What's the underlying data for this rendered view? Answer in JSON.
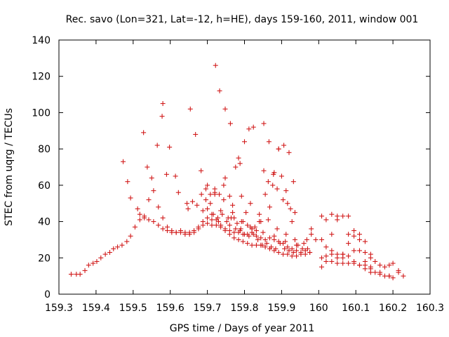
{
  "chart_data": {
    "type": "scatter",
    "title": "Rec. savo (Lon=321, Lat=-12, h=HE), days 159-160, 2011, window 001",
    "xlabel": "GPS time / Days of year 2011",
    "ylabel": "STEC from uqrg / TECUs",
    "xlim": [
      159.3,
      160.3
    ],
    "ylim": [
      0,
      140
    ],
    "xticks": [
      "159.3",
      "159.4",
      "159.5",
      "159.6",
      "159.7",
      "159.8",
      "159.9",
      "160",
      "160.1",
      "160.2",
      "160.3"
    ],
    "yticks": [
      "0",
      "20",
      "40",
      "60",
      "80",
      "100",
      "120",
      "140"
    ],
    "grid": false,
    "marker": "+",
    "series": [
      {
        "name": "STEC",
        "color": "#d11a1a",
        "points": [
          [
            159.333,
            11
          ],
          [
            159.347,
            11
          ],
          [
            159.357,
            11
          ],
          [
            159.37,
            13
          ],
          [
            159.38,
            16
          ],
          [
            159.392,
            17
          ],
          [
            159.402,
            18
          ],
          [
            159.413,
            20
          ],
          [
            159.425,
            22
          ],
          [
            159.437,
            23
          ],
          [
            159.447,
            25
          ],
          [
            159.458,
            26
          ],
          [
            159.47,
            27
          ],
          [
            159.483,
            29
          ],
          [
            159.493,
            32
          ],
          [
            159.505,
            37
          ],
          [
            159.518,
            41
          ],
          [
            159.53,
            43
          ],
          [
            159.542,
            41
          ],
          [
            159.555,
            40
          ],
          [
            159.568,
            38
          ],
          [
            159.58,
            36
          ],
          [
            159.592,
            35
          ],
          [
            159.604,
            34
          ],
          [
            159.616,
            34
          ],
          [
            159.628,
            34
          ],
          [
            159.64,
            33
          ],
          [
            159.652,
            33
          ],
          [
            159.664,
            34
          ],
          [
            159.676,
            36
          ],
          [
            159.688,
            38
          ],
          [
            159.7,
            39
          ],
          [
            159.712,
            38
          ],
          [
            159.724,
            38
          ],
          [
            159.736,
            37
          ],
          [
            159.748,
            35
          ],
          [
            159.76,
            33
          ],
          [
            159.772,
            31
          ],
          [
            159.784,
            30
          ],
          [
            159.796,
            29
          ],
          [
            159.808,
            28
          ],
          [
            159.82,
            27
          ],
          [
            159.832,
            27
          ],
          [
            159.844,
            27
          ],
          [
            159.856,
            26
          ],
          [
            159.868,
            25
          ],
          [
            159.88,
            24
          ],
          [
            159.892,
            23
          ],
          [
            159.904,
            22
          ],
          [
            159.916,
            22
          ],
          [
            159.928,
            21
          ],
          [
            159.94,
            21
          ],
          [
            159.952,
            22
          ],
          [
            159.964,
            22
          ],
          [
            159.976,
            23
          ],
          [
            160.008,
            15
          ],
          [
            160.02,
            18
          ],
          [
            160.035,
            18
          ],
          [
            160.05,
            17
          ],
          [
            160.065,
            17
          ],
          [
            160.08,
            17
          ],
          [
            160.095,
            17
          ],
          [
            160.11,
            16
          ],
          [
            160.125,
            16
          ],
          [
            160.14,
            14
          ],
          [
            160.152,
            12
          ],
          [
            160.165,
            11
          ],
          [
            160.178,
            10
          ],
          [
            160.19,
            10
          ],
          [
            160.2,
            9
          ],
          [
            160.215,
            13
          ],
          [
            160.228,
            10
          ],
          [
            159.493,
            53
          ],
          [
            159.518,
            44
          ],
          [
            159.53,
            42
          ],
          [
            159.542,
            52
          ],
          [
            159.555,
            57
          ],
          [
            159.568,
            48
          ],
          [
            159.58,
            42
          ],
          [
            159.592,
            37
          ],
          [
            159.604,
            35
          ],
          [
            159.616,
            34
          ],
          [
            159.628,
            35
          ],
          [
            159.64,
            34
          ],
          [
            159.652,
            34
          ],
          [
            159.664,
            35
          ],
          [
            159.676,
            37
          ],
          [
            159.688,
            40
          ],
          [
            159.7,
            42
          ],
          [
            159.712,
            44
          ],
          [
            159.724,
            41
          ],
          [
            159.736,
            38
          ],
          [
            159.748,
            36
          ],
          [
            159.76,
            35
          ],
          [
            159.772,
            34
          ],
          [
            159.784,
            34
          ],
          [
            159.796,
            33
          ],
          [
            159.808,
            33
          ],
          [
            159.82,
            34
          ],
          [
            159.832,
            32
          ],
          [
            159.844,
            31
          ],
          [
            159.856,
            30
          ],
          [
            159.868,
            31
          ],
          [
            159.88,
            30
          ],
          [
            159.892,
            29
          ],
          [
            159.904,
            28
          ],
          [
            159.916,
            26
          ],
          [
            159.928,
            25
          ],
          [
            159.94,
            24
          ],
          [
            159.952,
            23
          ],
          [
            159.964,
            24
          ],
          [
            159.976,
            23
          ],
          [
            159.473,
            73
          ],
          [
            159.485,
            62
          ],
          [
            159.512,
            47
          ],
          [
            159.538,
            70
          ],
          [
            159.55,
            64
          ],
          [
            159.565,
            82
          ],
          [
            159.59,
            66
          ],
          [
            159.614,
            65
          ],
          [
            159.648,
            47
          ],
          [
            159.672,
            49
          ],
          [
            159.696,
            52
          ],
          [
            159.72,
            58
          ],
          [
            159.744,
            60
          ],
          [
            159.768,
            49
          ],
          [
            159.792,
            54
          ],
          [
            159.816,
            50
          ],
          [
            159.84,
            44
          ],
          [
            159.864,
            41
          ],
          [
            159.888,
            36
          ],
          [
            159.912,
            33
          ],
          [
            159.936,
            30
          ],
          [
            159.96,
            28
          ],
          [
            159.528,
            89
          ],
          [
            159.578,
            98
          ],
          [
            159.58,
            105
          ],
          [
            159.598,
            81
          ],
          [
            159.654,
            102
          ],
          [
            159.668,
            88
          ],
          [
            159.683,
            68
          ],
          [
            159.722,
            126
          ],
          [
            159.733,
            112
          ],
          [
            159.748,
            102
          ],
          [
            159.762,
            94
          ],
          [
            159.776,
            70
          ],
          [
            159.788,
            72
          ],
          [
            159.8,
            84
          ],
          [
            159.812,
            91
          ],
          [
            159.824,
            92
          ],
          [
            159.852,
            94
          ],
          [
            159.866,
            84
          ],
          [
            159.878,
            66
          ],
          [
            159.892,
            80
          ],
          [
            159.906,
            82
          ],
          [
            159.92,
            78
          ],
          [
            159.932,
            62
          ],
          [
            159.622,
            56
          ],
          [
            159.645,
            50
          ],
          [
            159.66,
            51
          ],
          [
            159.684,
            55
          ],
          [
            159.696,
            58
          ],
          [
            159.708,
            55
          ],
          [
            159.72,
            55
          ],
          [
            159.732,
            55
          ],
          [
            159.744,
            52
          ],
          [
            159.756,
            42
          ],
          [
            159.768,
            45
          ],
          [
            159.78,
            39
          ],
          [
            159.792,
            40
          ],
          [
            159.804,
            45
          ],
          [
            159.816,
            37
          ],
          [
            159.828,
            37
          ],
          [
            159.84,
            40
          ],
          [
            159.852,
            68
          ],
          [
            159.864,
            62
          ],
          [
            159.876,
            60
          ],
          [
            159.888,
            58
          ],
          [
            159.9,
            65
          ],
          [
            159.912,
            57
          ],
          [
            159.924,
            47
          ],
          [
            159.936,
            45
          ],
          [
            159.7,
            60
          ],
          [
            159.708,
            50
          ],
          [
            159.72,
            56
          ],
          [
            159.736,
            46
          ],
          [
            159.748,
            64
          ],
          [
            159.76,
            54
          ],
          [
            159.772,
            42
          ],
          [
            159.784,
            75
          ],
          [
            159.796,
            40
          ],
          [
            159.808,
            38
          ],
          [
            159.82,
            36
          ],
          [
            159.832,
            35
          ],
          [
            159.844,
            40
          ],
          [
            159.856,
            55
          ],
          [
            159.868,
            48
          ],
          [
            159.88,
            67
          ],
          [
            159.892,
            80
          ],
          [
            159.904,
            52
          ],
          [
            159.916,
            50
          ],
          [
            159.928,
            40
          ],
          [
            159.712,
            41
          ],
          [
            159.728,
            42
          ],
          [
            159.74,
            44
          ],
          [
            159.752,
            40
          ],
          [
            159.764,
            42
          ],
          [
            159.776,
            36
          ],
          [
            159.788,
            35
          ],
          [
            159.8,
            33
          ],
          [
            159.812,
            32
          ],
          [
            159.824,
            33
          ],
          [
            159.836,
            30
          ],
          [
            159.848,
            27
          ],
          [
            159.86,
            28
          ],
          [
            159.872,
            26
          ],
          [
            159.884,
            25
          ],
          [
            159.896,
            28
          ],
          [
            159.908,
            25
          ],
          [
            159.92,
            24
          ],
          [
            159.932,
            23
          ],
          [
            159.944,
            27
          ],
          [
            159.956,
            25
          ],
          [
            159.968,
            30
          ],
          [
            159.98,
            33
          ],
          [
            159.992,
            30
          ],
          [
            159.688,
            46
          ],
          [
            159.7,
            47
          ],
          [
            159.716,
            44
          ],
          [
            159.73,
            40
          ],
          [
            159.76,
            38
          ],
          [
            159.79,
            36
          ],
          [
            159.82,
            36
          ],
          [
            159.85,
            34
          ],
          [
            159.88,
            32
          ],
          [
            159.91,
            29
          ],
          [
            159.94,
            27
          ],
          [
            159.97,
            25
          ],
          [
            159.98,
            36
          ],
          [
            160.008,
            43
          ],
          [
            160.02,
            41
          ],
          [
            160.035,
            44
          ],
          [
            160.05,
            41
          ],
          [
            160.065,
            43
          ],
          [
            160.08,
            43
          ],
          [
            160.095,
            32
          ],
          [
            160.11,
            30
          ],
          [
            160.125,
            29
          ],
          [
            160.14,
            22
          ],
          [
            160.152,
            18
          ],
          [
            160.165,
            16
          ],
          [
            160.178,
            15
          ],
          [
            160.19,
            16
          ],
          [
            160.008,
            30
          ],
          [
            160.02,
            26
          ],
          [
            160.035,
            33
          ],
          [
            160.05,
            22
          ],
          [
            160.065,
            22
          ],
          [
            160.08,
            33
          ],
          [
            160.095,
            24
          ],
          [
            160.11,
            24
          ],
          [
            160.125,
            18
          ],
          [
            160.14,
            15
          ],
          [
            160.02,
            21
          ],
          [
            160.035,
            22
          ],
          [
            160.05,
            20
          ],
          [
            160.065,
            20
          ],
          [
            160.08,
            21
          ],
          [
            160.095,
            18
          ],
          [
            160.11,
            16
          ],
          [
            160.125,
            14
          ],
          [
            160.14,
            12
          ],
          [
            160.165,
            12
          ],
          [
            160.19,
            10
          ],
          [
            160.2,
            17
          ],
          [
            160.215,
            12
          ],
          [
            160.008,
            20
          ],
          [
            160.035,
            24
          ],
          [
            160.05,
            43
          ],
          [
            160.065,
            22
          ],
          [
            160.08,
            28
          ],
          [
            160.095,
            35
          ],
          [
            160.11,
            33
          ],
          [
            160.125,
            23
          ],
          [
            160.14,
            20
          ]
        ]
      }
    ]
  }
}
